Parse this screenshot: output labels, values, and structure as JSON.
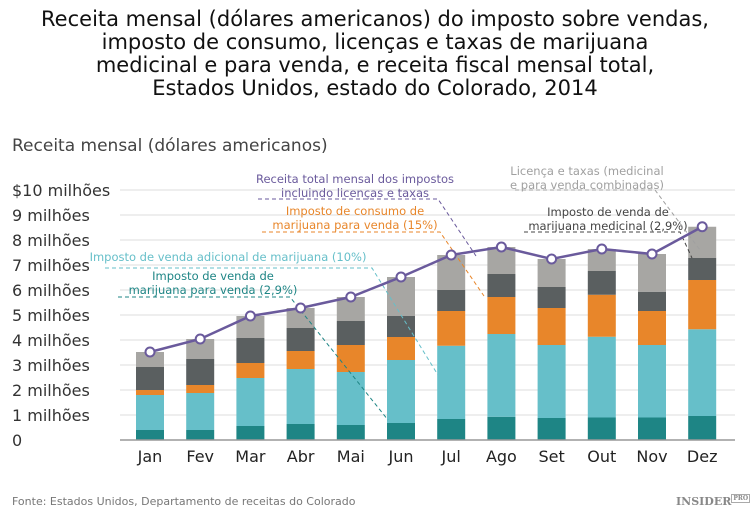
{
  "title": "Receita mensal (dólares americanos) do imposto sobre vendas,\nimposto de consumo, licenças e taxas de marijuana\nmedicinal e para venda, e  receita fiscal mensal total,\nEstados Unidos, estado do Colorado, 2014",
  "source": "Fonte: Estados Unidos, Departamento de receitas do Colorado",
  "logo": "INSIDER",
  "logo_sup": "PRO",
  "chart_data": {
    "type": "bar",
    "stacked": true,
    "ylabel": "Receita mensal (dólares americanos)",
    "ylim": [
      0,
      10
    ],
    "yticks": [
      {
        "value": 0,
        "label": "0"
      },
      {
        "value": 1,
        "label": "1 milhões"
      },
      {
        "value": 2,
        "label": "2 milhões"
      },
      {
        "value": 3,
        "label": "3 milhões"
      },
      {
        "value": 4,
        "label": "4 milhões"
      },
      {
        "value": 5,
        "label": "5 milhões"
      },
      {
        "value": 6,
        "label": "6 milhões"
      },
      {
        "value": 7,
        "label": "7 milhões"
      },
      {
        "value": 8,
        "label": "8 milhões"
      },
      {
        "value": 9,
        "label": "9 milhões"
      },
      {
        "value": 10,
        "label": "$10 milhões"
      }
    ],
    "grid": true,
    "categories": [
      "Jan",
      "Fev",
      "Mar",
      "Abr",
      "Mai",
      "Jun",
      "Jul",
      "Ago",
      "Set",
      "Out",
      "Nov",
      "Dez"
    ],
    "series": [
      {
        "name": "Imposto de venda de\nmarijuana para venda (2,9%)",
        "color": "#1e8585",
        "values": [
          0.4,
          0.4,
          0.56,
          0.64,
          0.6,
          0.68,
          0.84,
          0.93,
          0.88,
          0.9,
          0.9,
          0.96
        ]
      },
      {
        "name": "Imposto de venda adicional de marijuana (10%)",
        "color": "#66bfc9",
        "values": [
          1.4,
          1.48,
          1.92,
          2.2,
          2.12,
          2.52,
          2.93,
          3.31,
          2.92,
          3.23,
          2.9,
          3.47
        ]
      },
      {
        "name": "Imposto de consumo de\nmarijuana para venda (15%)",
        "color": "#e8862a",
        "values": [
          0.2,
          0.32,
          0.6,
          0.72,
          1.08,
          0.92,
          1.39,
          1.48,
          1.48,
          1.68,
          1.36,
          1.97
        ]
      },
      {
        "name": "Imposto de venda de\nmarijuana medicinal (2,9%)",
        "color": "#5a5f60",
        "values": [
          0.92,
          1.04,
          1.0,
          0.92,
          0.96,
          0.84,
          0.84,
          0.92,
          0.84,
          0.95,
          0.77,
          0.88
        ]
      },
      {
        "name": "Licença e taxas (medicinal\ne para venda combinadas)",
        "color": "#a7a6a3",
        "values": [
          0.6,
          0.8,
          0.88,
          0.8,
          0.96,
          1.56,
          1.4,
          1.08,
          1.12,
          0.88,
          1.51,
          1.25
        ]
      }
    ],
    "line": {
      "name": "Receita total mensal dos impostos\nincluindo licenças e taxas",
      "color": "#6a5a9c",
      "values": [
        3.52,
        4.04,
        4.96,
        5.28,
        5.72,
        6.52,
        7.4,
        7.72,
        7.24,
        7.64,
        7.44,
        8.53
      ]
    },
    "unit": "milhões de dólares"
  }
}
